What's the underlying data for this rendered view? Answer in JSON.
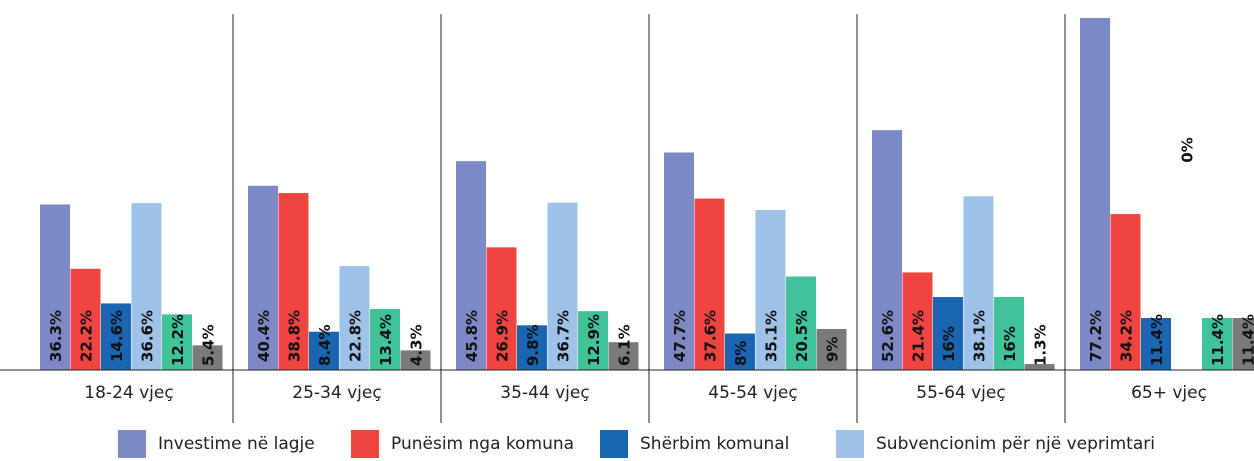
{
  "chart_data": {
    "type": "bar",
    "categories": [
      "18-24 vjeç",
      "25-34 vjeç",
      "35-44 vjeç",
      "45-54 vjeç",
      "55-64 vjeç",
      "65+ vjeç"
    ],
    "series": [
      {
        "name": "Investime në lagje",
        "color": "#7b89c5",
        "values": [
          36.3,
          40.4,
          45.8,
          47.7,
          52.6,
          77.2
        ],
        "labels": [
          "36.3%",
          "40.4%",
          "45.8%",
          "47.7%",
          "52.6%",
          "77.2%"
        ]
      },
      {
        "name": "Punësim nga komuna",
        "color": "#ee4540",
        "values": [
          22.2,
          38.8,
          26.9,
          37.6,
          21.4,
          34.2
        ],
        "labels": [
          "22.2%",
          "38.8%",
          "26.9%",
          "37.6%",
          "21.4%",
          "34.2%"
        ]
      },
      {
        "name": "Shërbim komunal",
        "color": "#1a66b2",
        "values": [
          14.6,
          8.4,
          9.8,
          8,
          16,
          11.4
        ],
        "labels": [
          "14.6%",
          "8.4%",
          "9.8%",
          "8%",
          "16%",
          "11.4%"
        ]
      },
      {
        "name": "Subvencionim për një veprimtari",
        "color": "#9fc3e8",
        "values": [
          36.6,
          22.8,
          36.7,
          35.1,
          38.1,
          0
        ],
        "labels": [
          "36.6%",
          "22.8%",
          "36.7%",
          "35.1%",
          "38.1%",
          "0%"
        ]
      },
      {
        "name": "",
        "color": "#40c29a",
        "values": [
          12.2,
          13.4,
          12.9,
          20.5,
          16,
          11.4
        ],
        "labels": [
          "12.2%",
          "13.4%",
          "12.9%",
          "20.5%",
          "16%",
          "11.4%"
        ]
      },
      {
        "name": "",
        "color": "#7a7a7a",
        "values": [
          5.4,
          4.3,
          6.1,
          9,
          1.3,
          11.4
        ],
        "labels": [
          "5.4%",
          "4.3%",
          "6.1%",
          "9%",
          "1.3%",
          "11.4%"
        ]
      }
    ],
    "ylim": [
      0,
      80
    ],
    "xlabel": "",
    "ylabel": "",
    "title": "",
    "legend_position": "bottom",
    "grid": false
  }
}
